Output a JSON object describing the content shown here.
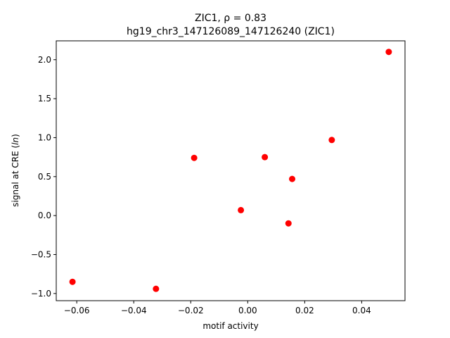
{
  "chart_data": {
    "type": "scatter",
    "title_line1": "ZIC1, ρ = 0.83",
    "title_line2": "hg19_chr3_147126089_147126240 (ZIC1)",
    "xlabel": "motif activity",
    "ylabel": "signal at CRE (ln)",
    "xlim": [
      -0.0672,
      0.0552
    ],
    "ylim": [
      -1.092,
      2.242
    ],
    "xticks": [
      -0.06,
      -0.04,
      -0.02,
      0.0,
      0.02,
      0.04
    ],
    "xtick_labels": [
      "−0.06",
      "−0.04",
      "−0.02",
      "0.00",
      "0.02",
      "0.04"
    ],
    "yticks": [
      -1.0,
      -0.5,
      0.0,
      0.5,
      1.0,
      1.5,
      2.0
    ],
    "ytick_labels": [
      "−1.0",
      "−0.5",
      "0.0",
      "0.5",
      "1.0",
      "1.5",
      "2.0"
    ],
    "grid": false,
    "marker_color": "#ff0000",
    "points": [
      {
        "x": -0.0615,
        "y": -0.85
      },
      {
        "x": -0.0322,
        "y": -0.94
      },
      {
        "x": -0.0188,
        "y": 0.74
      },
      {
        "x": -0.0024,
        "y": 0.07
      },
      {
        "x": 0.006,
        "y": 0.75
      },
      {
        "x": 0.0143,
        "y": -0.1
      },
      {
        "x": 0.0156,
        "y": 0.47
      },
      {
        "x": 0.0295,
        "y": 0.97
      },
      {
        "x": 0.0495,
        "y": 2.1
      }
    ]
  }
}
